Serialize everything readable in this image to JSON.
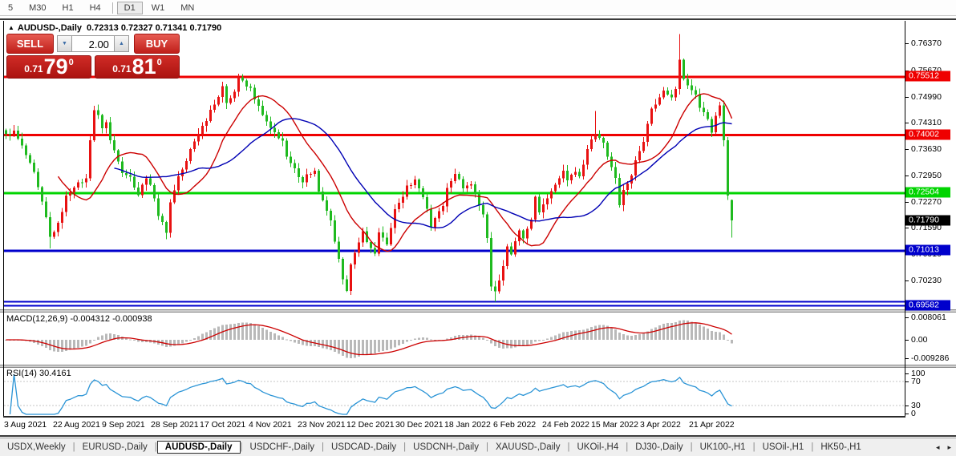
{
  "toolbar": {
    "timeframes": [
      {
        "label": "5",
        "active": false
      },
      {
        "label": "M30",
        "active": false
      },
      {
        "label": "H1",
        "active": false
      },
      {
        "label": "H4",
        "active": false
      },
      {
        "label": "D1",
        "active": true
      },
      {
        "label": "W1",
        "active": false
      },
      {
        "label": "MN",
        "active": false
      }
    ]
  },
  "chart": {
    "title_marker": "▲",
    "symbol": "AUDUSD-,Daily",
    "ohlc_text": "0.72313 0.72327 0.71341 0.71790",
    "trade_panel": {
      "sell_label": "SELL",
      "buy_label": "BUY",
      "volume": "2.00",
      "spinner_down": "▼",
      "spinner_up": "▲",
      "bid": {
        "prefix": "0.71",
        "big": "79",
        "sup": "0"
      },
      "ask": {
        "prefix": "0.71",
        "big": "81",
        "sup": "0"
      }
    }
  },
  "macd": {
    "label": "MACD(12,26,9)",
    "values_text": "-0.004312 -0.000938",
    "axis": [
      "0.008061",
      "0.00",
      "-0.009286"
    ]
  },
  "rsi": {
    "label": "RSI(14)",
    "value": "30.4161",
    "axis": [
      "100",
      "70",
      "30",
      "0"
    ]
  },
  "tabs": {
    "active": "AUDUSD-,Daily",
    "scroll_left": "◂",
    "scroll_right": "▸",
    "items": [
      "USDX,Weekly",
      "EURUSD-,Daily",
      "AUDUSD-,Daily",
      "USDCHF-,Daily",
      "USDCAD-,Daily",
      "USDCNH-,Daily",
      "XAUUSD-,Daily",
      "UKOil-,H4",
      "DJ30-,Daily",
      "UK100-,H1",
      "USOil-,H1",
      "HK50-,H1"
    ]
  },
  "colors": {
    "bull_candle": "#e81111",
    "bear_candle": "#1fba1f",
    "ma_fast": "#cc0000",
    "ma_slow": "#0000b4",
    "macd_hist": "#b9b9b9",
    "macd_signal": "#cc0000",
    "rsi_line": "#2a94d6",
    "level_red": "#ef0000",
    "level_green": "#00d400",
    "level_blue": "#0000cc",
    "bid_badge": "#000000"
  },
  "chart_data": {
    "type": "candlestick",
    "symbol": "AUDUSD",
    "timeframe": "Daily",
    "last_ohlc": [
      0.72313,
      0.72327,
      0.71341,
      0.7179
    ],
    "y_axis_ticks": [
      0.7637,
      0.7567,
      0.7499,
      0.7431,
      0.7363,
      0.7295,
      0.7227,
      0.7159,
      0.7091,
      0.7023
    ],
    "x_dates": [
      "3 Aug 2021",
      "22 Aug 2021",
      "9 Sep 2021",
      "28 Sep 2021",
      "17 Oct 2021",
      "4 Nov 2021",
      "23 Nov 2021",
      "12 Dec 2021",
      "30 Dec 2021",
      "18 Jan 2022",
      "6 Feb 2022",
      "24 Feb 2022",
      "15 Mar 2022",
      "3 Apr 2022",
      "21 Apr 2022"
    ],
    "levels": [
      {
        "price": 0.75512,
        "label": "0.75512",
        "color": "red",
        "line_width": 3,
        "badge": true
      },
      {
        "price": 0.74002,
        "label": "0.74002",
        "color": "red",
        "line_width": 3,
        "badge": true
      },
      {
        "price": 0.72504,
        "label": "0.72504",
        "color": "green",
        "line_width": 3,
        "badge": true
      },
      {
        "price": 0.7179,
        "label": "0.71790",
        "color": "black",
        "line_width": 0,
        "badge": true
      },
      {
        "price": 0.71013,
        "label": "0.71013",
        "color": "blue",
        "line_width": 3,
        "badge": true
      },
      {
        "price": 0.6968,
        "label": "",
        "color": "blue",
        "line_width": 2,
        "badge": false
      },
      {
        "price": 0.69582,
        "label": "0.69582",
        "color": "blue",
        "line_width": 2,
        "badge": true
      }
    ],
    "close_waypoints": [
      [
        0,
        0.74
      ],
      [
        2,
        0.7408
      ],
      [
        4,
        0.737
      ],
      [
        7,
        0.73
      ],
      [
        10,
        0.7185
      ],
      [
        11,
        0.7135
      ],
      [
        13,
        0.7168
      ],
      [
        15,
        0.724
      ],
      [
        17,
        0.7268
      ],
      [
        20,
        0.7285
      ],
      [
        21,
        0.739
      ],
      [
        22,
        0.7465
      ],
      [
        23,
        0.7448
      ],
      [
        24,
        0.742
      ],
      [
        25,
        0.7432
      ],
      [
        26,
        0.7385
      ],
      [
        28,
        0.7335
      ],
      [
        29,
        0.7305
      ],
      [
        31,
        0.729
      ],
      [
        33,
        0.7245
      ],
      [
        35,
        0.7292
      ],
      [
        37,
        0.724
      ],
      [
        38,
        0.7192
      ],
      [
        40,
        0.715
      ],
      [
        41,
        0.7225
      ],
      [
        43,
        0.7292
      ],
      [
        45,
        0.733
      ],
      [
        46,
        0.7362
      ],
      [
        48,
        0.7405
      ],
      [
        50,
        0.744
      ],
      [
        51,
        0.7465
      ],
      [
        53,
        0.75
      ],
      [
        54,
        0.7522
      ],
      [
        55,
        0.7485
      ],
      [
        57,
        0.7512
      ],
      [
        58,
        0.755
      ],
      [
        60,
        0.7525
      ],
      [
        61,
        0.752
      ],
      [
        62,
        0.7495
      ],
      [
        64,
        0.745
      ],
      [
        66,
        0.7415
      ],
      [
        67,
        0.7405
      ],
      [
        69,
        0.7385
      ],
      [
        70,
        0.734
      ],
      [
        72,
        0.731
      ],
      [
        74,
        0.728
      ],
      [
        75,
        0.7296
      ],
      [
        77,
        0.7306
      ],
      [
        78,
        0.725
      ],
      [
        80,
        0.7205
      ],
      [
        81,
        0.7175
      ],
      [
        82,
        0.712
      ],
      [
        84,
        0.703
      ],
      [
        85,
        0.7
      ],
      [
        86,
        0.7062
      ],
      [
        88,
        0.712
      ],
      [
        89,
        0.7155
      ],
      [
        90,
        0.712
      ],
      [
        92,
        0.7095
      ],
      [
        93,
        0.7145
      ],
      [
        95,
        0.7115
      ],
      [
        96,
        0.7162
      ],
      [
        97,
        0.7205
      ],
      [
        99,
        0.7242
      ],
      [
        100,
        0.7265
      ],
      [
        102,
        0.7282
      ],
      [
        103,
        0.7265
      ],
      [
        105,
        0.721
      ],
      [
        106,
        0.7162
      ],
      [
        107,
        0.7186
      ],
      [
        109,
        0.7215
      ],
      [
        110,
        0.7265
      ],
      [
        112,
        0.7302
      ],
      [
        113,
        0.7282
      ],
      [
        114,
        0.7265
      ],
      [
        116,
        0.7272
      ],
      [
        117,
        0.7246
      ],
      [
        119,
        0.7195
      ],
      [
        120,
        0.713
      ],
      [
        121,
        0.7012
      ],
      [
        122,
        0.6992
      ],
      [
        124,
        0.7062
      ],
      [
        125,
        0.7112
      ],
      [
        126,
        0.7092
      ],
      [
        128,
        0.715
      ],
      [
        129,
        0.7132
      ],
      [
        131,
        0.7176
      ],
      [
        132,
        0.724
      ],
      [
        133,
        0.7202
      ],
      [
        135,
        0.7232
      ],
      [
        136,
        0.7256
      ],
      [
        138,
        0.729
      ],
      [
        139,
        0.7312
      ],
      [
        140,
        0.7282
      ],
      [
        142,
        0.7306
      ],
      [
        143,
        0.7292
      ],
      [
        145,
        0.736
      ],
      [
        146,
        0.7392
      ],
      [
        147,
        0.7402
      ],
      [
        149,
        0.7382
      ],
      [
        150,
        0.7345
      ],
      [
        152,
        0.729
      ],
      [
        153,
        0.7222
      ],
      [
        154,
        0.7256
      ],
      [
        156,
        0.7296
      ],
      [
        157,
        0.7332
      ],
      [
        159,
        0.7386
      ],
      [
        160,
        0.7432
      ],
      [
        161,
        0.7466
      ],
      [
        163,
        0.7496
      ],
      [
        164,
        0.7516
      ],
      [
        166,
        0.75
      ],
      [
        167,
        0.7522
      ],
      [
        168,
        0.7592
      ],
      [
        169,
        0.7546
      ],
      [
        170,
        0.7526
      ],
      [
        172,
        0.7506
      ],
      [
        173,
        0.747
      ],
      [
        175,
        0.7442
      ],
      [
        176,
        0.741
      ],
      [
        177,
        0.7446
      ],
      [
        178,
        0.7476
      ],
      [
        179,
        0.7386
      ],
      [
        180,
        0.7243
      ],
      [
        181,
        0.7179
      ]
    ],
    "wick_overrides": {
      "11": {
        "low": 0.7106
      },
      "40": {
        "low": 0.713
      },
      "58": {
        "high": 0.7558
      },
      "85": {
        "low": 0.6993
      },
      "122": {
        "low": 0.6968
      },
      "147": {
        "high": 0.7462
      },
      "168": {
        "high": 0.7661
      },
      "181": {
        "low": 0.71341
      }
    },
    "moving_averages": [
      {
        "name": "ma-fast",
        "period": 14,
        "color": "#cc0000"
      },
      {
        "name": "ma-slow",
        "period": 28,
        "color": "#0000b4"
      }
    ],
    "indicators": [
      {
        "name": "MACD",
        "params": [
          12,
          26,
          9
        ],
        "display_values": [
          -0.004312,
          -0.000938
        ],
        "axis_max": 0.008061,
        "axis_min": -0.009286,
        "style": "histogram+signal"
      },
      {
        "name": "RSI",
        "params": [
          14
        ],
        "display_value": 30.4161,
        "axis": [
          0,
          30,
          70,
          100
        ],
        "level_lines": [
          30,
          70
        ],
        "style": "line"
      }
    ]
  }
}
